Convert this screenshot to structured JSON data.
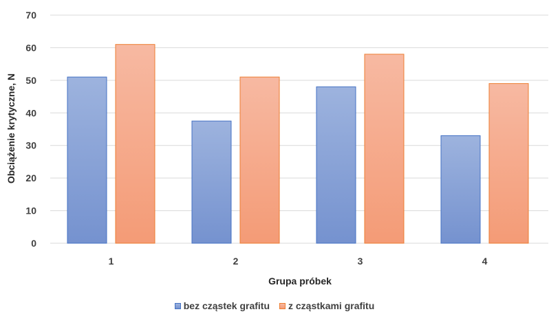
{
  "chart_data": {
    "type": "bar",
    "categories": [
      "1",
      "2",
      "3",
      "4"
    ],
    "series": [
      {
        "name": "bez cząstek grafitu",
        "values": [
          51,
          37.5,
          48,
          33
        ],
        "fill_top": "#9db3de",
        "fill_bottom": "#7592cf",
        "stroke": "#4472c4"
      },
      {
        "name": "z cząstkami grafitu",
        "values": [
          61,
          51,
          58,
          49
        ],
        "fill_top": "#f7b9a2",
        "fill_bottom": "#f49b76",
        "stroke": "#ed7d31"
      }
    ],
    "xlabel": "Grupa próbek",
    "ylabel": "Obciążenie krytyczne, N",
    "ylim": [
      0,
      70
    ],
    "yticks": [
      "0",
      "10",
      "20",
      "30",
      "40",
      "50",
      "60",
      "70"
    ],
    "grid": true,
    "legend_position": "bottom",
    "gridline_color": "#d9d9d9"
  }
}
